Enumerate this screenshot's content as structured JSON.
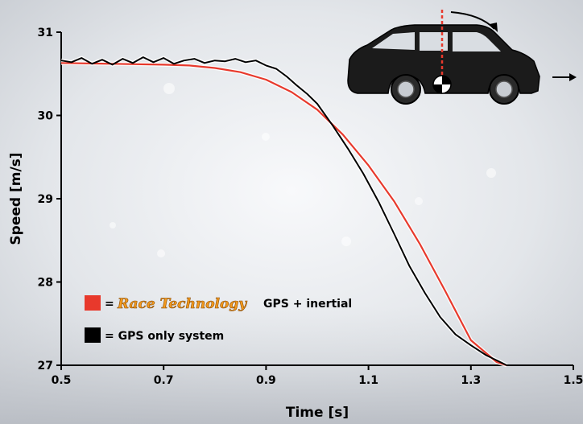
{
  "chart_data": {
    "type": "line",
    "xlabel": "Time [s]",
    "ylabel": "Speed [m/s]",
    "xlim": [
      0.5,
      1.5
    ],
    "ylim": [
      27,
      31
    ],
    "x_ticks": [
      "0.5",
      "0.7",
      "0.9",
      "1.1",
      "1.3",
      "1.5"
    ],
    "y_ticks": [
      "27",
      "28",
      "29",
      "30",
      "31"
    ],
    "grid": false,
    "legend_position": "bottom-left",
    "series": [
      {
        "name": "Race Technology GPS + inertial",
        "color": "#e8392c",
        "x": [
          0.5,
          0.6,
          0.7,
          0.75,
          0.8,
          0.85,
          0.9,
          0.95,
          1.0,
          1.05,
          1.1,
          1.15,
          1.2,
          1.25,
          1.3,
          1.35,
          1.37
        ],
        "y": [
          30.63,
          30.62,
          30.61,
          30.6,
          30.57,
          30.52,
          30.43,
          30.28,
          30.07,
          29.77,
          29.4,
          28.97,
          28.46,
          27.89,
          27.3,
          27.04,
          27.0
        ]
      },
      {
        "name": "GPS only system",
        "color": "#000000",
        "x": [
          0.5,
          0.52,
          0.54,
          0.56,
          0.58,
          0.6,
          0.62,
          0.64,
          0.66,
          0.68,
          0.7,
          0.72,
          0.74,
          0.76,
          0.78,
          0.8,
          0.82,
          0.84,
          0.86,
          0.88,
          0.9,
          0.92,
          0.94,
          0.96,
          0.98,
          1.0,
          1.03,
          1.06,
          1.09,
          1.12,
          1.15,
          1.18,
          1.21,
          1.24,
          1.27,
          1.3,
          1.33,
          1.36,
          1.37
        ],
        "y": [
          30.66,
          30.64,
          30.69,
          30.62,
          30.67,
          30.61,
          30.68,
          30.63,
          30.7,
          30.64,
          30.69,
          30.62,
          30.66,
          30.68,
          30.63,
          30.66,
          30.65,
          30.68,
          30.64,
          30.66,
          30.6,
          30.56,
          30.47,
          30.36,
          30.26,
          30.14,
          29.88,
          29.6,
          29.3,
          28.96,
          28.58,
          28.19,
          27.87,
          27.58,
          27.37,
          27.24,
          27.12,
          27.03,
          27.0
        ]
      }
    ],
    "legend": {
      "brand": "Race Technology",
      "entry1_suffix": "GPS + inertial",
      "entry2": "= GPS only system",
      "equals": "="
    }
  }
}
